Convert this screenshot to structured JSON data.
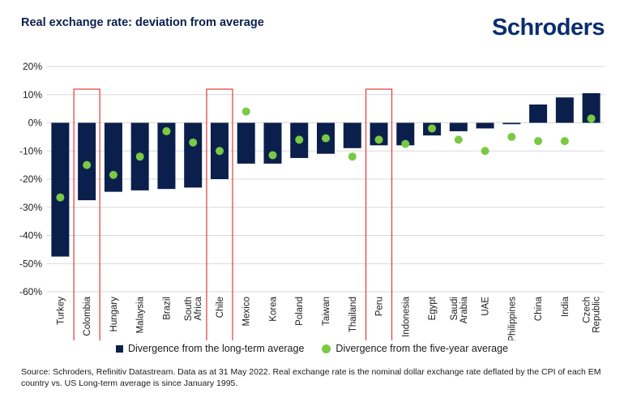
{
  "header": {
    "title": "Real exchange rate: deviation from average",
    "brand": "Schroders"
  },
  "colors": {
    "bar": "#0b1f4d",
    "dot": "#7ac943",
    "highlight": "#e23a3a",
    "grid": "#d9d9d9"
  },
  "chart_data": {
    "type": "bar",
    "title": "Real exchange rate: deviation from average",
    "categories": [
      "Turkey",
      "Colombia",
      "Hungary",
      "Malaysia",
      "Brazil",
      "South Africa",
      "Chile",
      "Mexico",
      "Korea",
      "Poland",
      "Taiwan",
      "Thailand",
      "Peru",
      "Indonesia",
      "Egypt",
      "Saudi Arabia",
      "UAE",
      "Philippines",
      "China",
      "India",
      "Czech Republic"
    ],
    "category_lines": [
      [
        "Turkey"
      ],
      [
        "Colombia"
      ],
      [
        "Hungary"
      ],
      [
        "Malaysia"
      ],
      [
        "Brazil"
      ],
      [
        "South",
        "Africa"
      ],
      [
        "Chile"
      ],
      [
        "Mexico"
      ],
      [
        "Korea"
      ],
      [
        "Poland"
      ],
      [
        "Taiwan"
      ],
      [
        "Thailand"
      ],
      [
        "Peru"
      ],
      [
        "Indonesia"
      ],
      [
        "Egypt"
      ],
      [
        "Saudi",
        "Arabia"
      ],
      [
        "UAE"
      ],
      [
        "Philippines"
      ],
      [
        "China"
      ],
      [
        "India"
      ],
      [
        "Czech",
        "Republic"
      ]
    ],
    "series": [
      {
        "name": "Divergence from the long-term average",
        "type": "bar",
        "values": [
          -47.5,
          -27.5,
          -24.5,
          -24,
          -23.5,
          -23,
          -20,
          -14.5,
          -14.5,
          -12.5,
          -11,
          -9,
          -8,
          -8,
          -4.5,
          -3,
          -2,
          -0.5,
          6.5,
          9,
          10.5
        ]
      },
      {
        "name": "Divergence from the five-year average",
        "type": "scatter",
        "values": [
          -26.5,
          -15,
          -18.5,
          -12,
          -3,
          -7,
          -10,
          4,
          -11.5,
          -6,
          -5.5,
          -12,
          -6,
          -7.5,
          -2,
          -6,
          -10,
          -5,
          -6.5,
          -6.5,
          1.5
        ]
      }
    ],
    "highlighted": [
      "Colombia",
      "Chile",
      "Peru"
    ],
    "y_ticks": [
      20,
      10,
      0,
      -10,
      -20,
      -30,
      -40,
      -50,
      -60
    ],
    "y_tick_labels": [
      "20%",
      "10%",
      "0%",
      "-10%",
      "-20%",
      "-30%",
      "-40%",
      "-50%",
      "-60%"
    ],
    "ylim": [
      -60,
      20
    ],
    "grid": true,
    "legend_position": "bottom"
  },
  "footer": {
    "source": "Source: Schroders, Refinitiv Datastream. Data as at 31 May 2022. Real exchange rate is the nominal dollar exchange rate deflated by the CPI of each EM country vs. US Long-term average is since January 1995."
  }
}
